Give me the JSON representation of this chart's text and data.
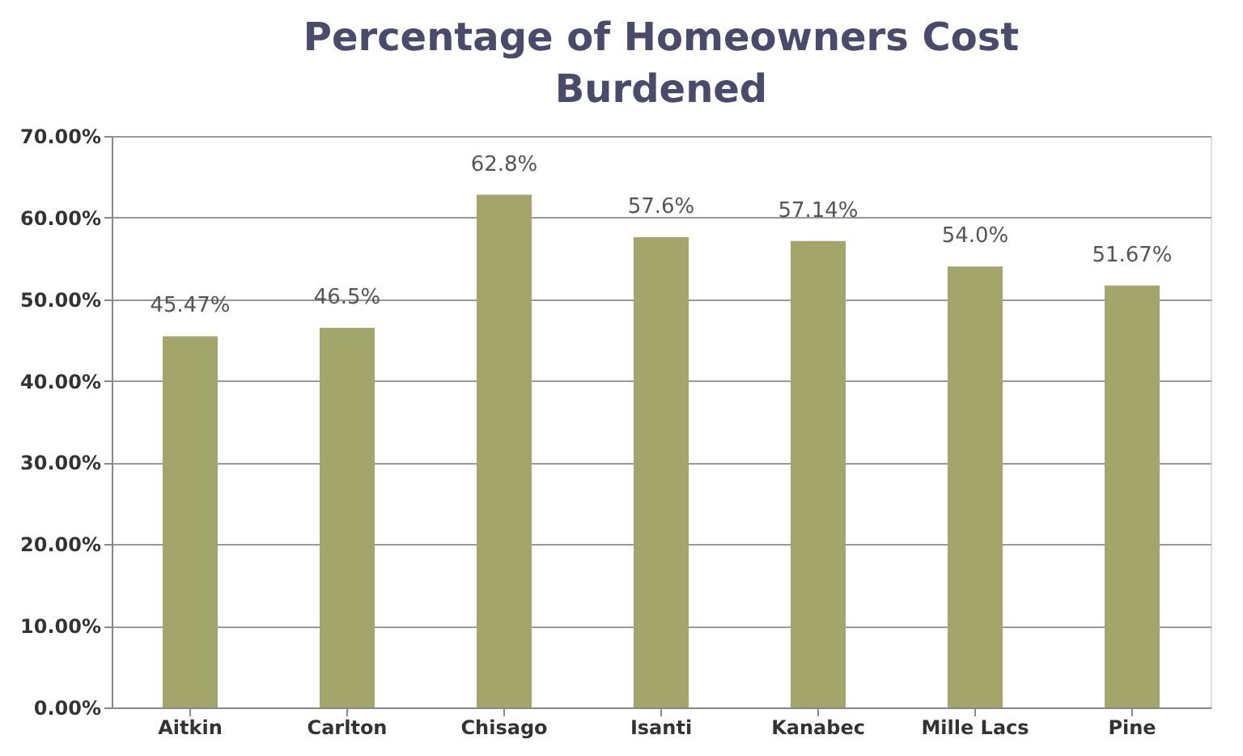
{
  "chart_data": {
    "type": "bar",
    "title": "Percentage of Homeowners Cost Burdened",
    "categories": [
      "Aitkin",
      "Carlton",
      "Chisago",
      "Isanti",
      "Kanabec",
      "Mille Lacs",
      "Pine"
    ],
    "values": [
      45.47,
      46.5,
      62.8,
      57.6,
      57.14,
      54.0,
      51.67
    ],
    "value_labels": [
      "45.47%",
      "46.5%",
      "62.8%",
      "57.6%",
      "57.14%",
      "54.0%",
      "51.67%"
    ],
    "color": "#a3a66a",
    "ylim": [
      0,
      70
    ],
    "yticks": [
      {
        "value": 0,
        "label": "0.00%"
      },
      {
        "value": 10,
        "label": "10.00%"
      },
      {
        "value": 20,
        "label": "20.00%"
      },
      {
        "value": 30,
        "label": "30.00%"
      },
      {
        "value": 40,
        "label": "40.00%"
      },
      {
        "value": 50,
        "label": "50.00%"
      },
      {
        "value": 60,
        "label": "60.00%"
      },
      {
        "value": 70,
        "label": "70.00%"
      }
    ],
    "grid": "y"
  }
}
